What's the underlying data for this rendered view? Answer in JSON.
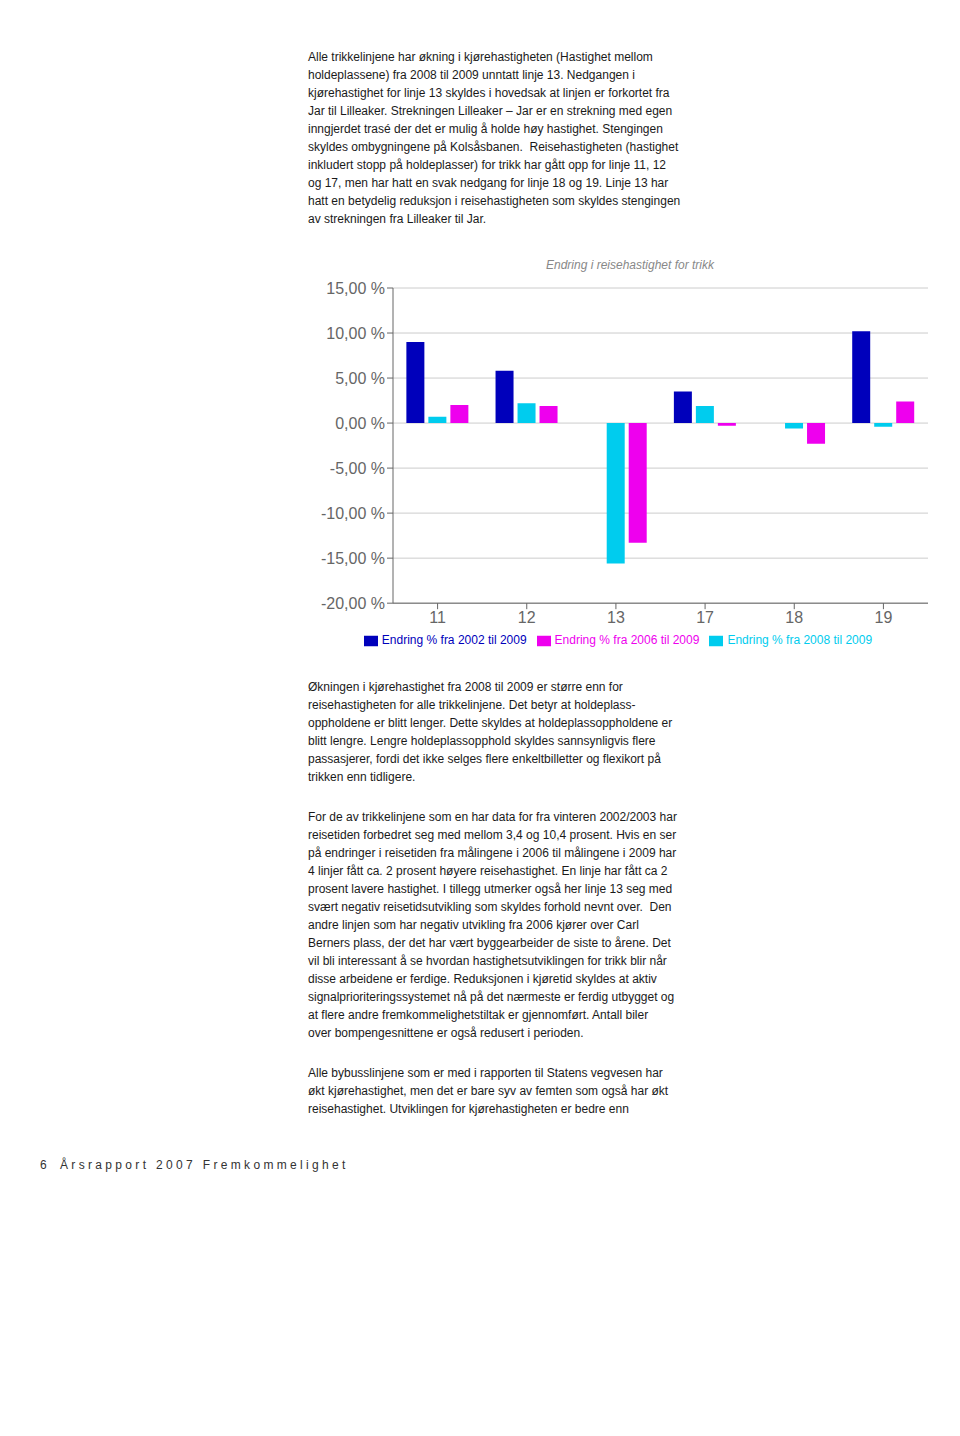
{
  "chart_data": {
    "type": "bar",
    "title": "Endring i reisehastighet for trikk",
    "categories": [
      "11",
      "12",
      "13",
      "17",
      "18",
      "19"
    ],
    "series": [
      {
        "name": "Endring % fra 2002 til 2009",
        "color": "#0000BB",
        "values": [
          9.0,
          5.8,
          0.0,
          3.5,
          0.0,
          10.2
        ]
      },
      {
        "name": "Endring % fra 2008 til 2009",
        "color": "#00CCEE",
        "values": [
          0.7,
          2.2,
          -15.6,
          1.9,
          -0.6,
          -0.4
        ]
      },
      {
        "name": "Endring % fra 2006 til 2009",
        "color": "#EE00EE",
        "values": [
          2.0,
          1.9,
          -13.3,
          -0.3,
          -2.3,
          2.4
        ]
      }
    ],
    "ylim": [
      -20,
      15
    ],
    "yticks": [
      {
        "value": -20,
        "label": "-20,00 %"
      },
      {
        "value": -15,
        "label": "-15,00 %"
      },
      {
        "value": -10,
        "label": "-10,00 %"
      },
      {
        "value": -5,
        "label": "-5,00 %"
      },
      {
        "value": 0,
        "label": "0,00 %"
      },
      {
        "value": 5,
        "label": "5,00 %"
      },
      {
        "value": 10,
        "label": "10,00 %"
      },
      {
        "value": 15,
        "label": "15,00 %"
      }
    ],
    "grid": true,
    "legend": "bottom",
    "annotations": [
      "Alle trikkelinjene har økning i kjørehastigheten (Hastighet mellom\nholdeplassene) fra 2008 til 2009 unntatt linje 13. Nedgangen i\nkjørehastighet for linje 13 skyldes i hovedsak at linjen er forkortet fra\nJar til Lilleaker. Strekningen Lilleaker – Jar er en strekning med egen\ninngjerdet trasé der det er mulig å holde høy hastighet. Stengingen\nskyldes ombygningene på Kolsåsbanen.  Reisehastigheten (hastighet\ninkludert stopp på holdeplasser) for trikk har gått opp for linje 11, 12\nog 17, men har hatt en svak nedgang for linje 18 og 19. Linje 13 har\nhatt en betydelig reduksjon i reisehastigheten som skyldes stengingen\nav strekningen fra Lilleaker til Jar.",
      "Økningen i kjørehastighet fra 2008 til 2009 er større enn for\nreisehastigheten for alle trikkelinjene. Det betyr at holdeplass-\noppholdene er blitt lenger. Dette skyldes at holdeplassoppholdene er\nblitt lengre. Lengre holdeplassopphold skyldes sannsynligvis flere\npassasjerer, fordi det ikke selges flere enkeltbilletter og flexikort på\ntrikken enn tidligere.",
      "For de av trikkelinjene som en har data for fra vinteren 2002/2003 har\nreisetiden forbedret seg med mellom 3,4 og 10,4 prosent. Hvis en ser\npå endringer i reisetiden fra målingene i 2006 til målingene i 2009 har\n4 linjer fått ca. 2 prosent høyere reisehastighet. En linje har fått ca 2\nprosent lavere hastighet. I tillegg utmerker også her linje 13 seg med\nsvært negativ reisetidsutvikling som skyldes forhold nevnt over.  Den\nandre linjen som har negativ utvikling fra 2006 kjører over Carl\nBerners plass, der det har vært byggearbeider de siste to årene. Det\nvil bli interessant å se hvordan hastighetsutviklingen for trikk blir når\ndisse arbeidene er ferdige. Reduksjonen i kjøretid skyldes at aktiv\nsignalprioriteringssystemet nå på det nærmeste er ferdig utbygget og\nat flere andre fremkommelighetstiltak er gjennomført. Antall biler\nover bompengesnittene er også redusert i perioden.",
      "Alle bybusslinjene som er med i rapporten til Statens vegvesen har\nøkt kjørehastighet, men det er bare syv av femten som også har økt\nreisehastighet. Utviklingen for kjørehastigheten er bedre enn",
      "6    Å r s r a p p o r t   2 0 0 7   F r e m k o m m e l i g h e t"
    ]
  }
}
